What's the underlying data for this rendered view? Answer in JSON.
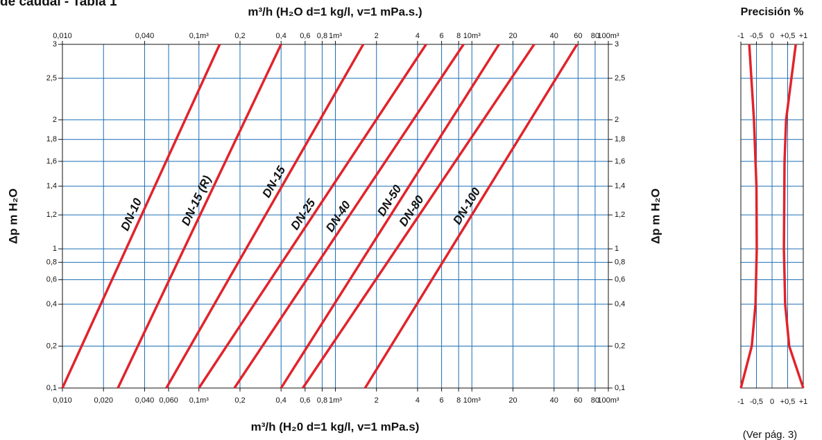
{
  "page_title": "de caudal - Tabla 1",
  "note": "(Ver pág. 3)",
  "chart_data": [
    {
      "type": "line",
      "x_label_top": "m³/h (H₂O  d=1  kg/l,  v=1 mPa.s.)",
      "x_label": "m³/h (H₂0  d=1  kg/l,  v=1 mPa.s)",
      "y_label": "Δp m H₂O",
      "xscale": "log",
      "xlim": [
        0.01,
        100
      ],
      "ylim": [
        0.1,
        3
      ],
      "grid": true,
      "xticks": [
        {
          "value": 0.01,
          "label": "0,010"
        },
        {
          "value": 0.02,
          "label": "0,020"
        },
        {
          "value": 0.04,
          "label": "0,040"
        },
        {
          "value": 0.06,
          "label": "0,060"
        },
        {
          "value": 0.1,
          "label": "0,1m³"
        },
        {
          "value": 0.2,
          "label": "0,2"
        },
        {
          "value": 0.4,
          "label": "0,4"
        },
        {
          "value": 0.6,
          "label": "0,6"
        },
        {
          "value": 0.8,
          "label": "0,8"
        },
        {
          "value": 1,
          "label": "1m³"
        },
        2,
        4,
        6,
        8,
        {
          "value": 10,
          "label": "10m³"
        },
        20,
        40,
        60,
        80,
        {
          "value": 100,
          "label": "100m³"
        }
      ],
      "x2ticks": [
        {
          "value": 0.01,
          "label": "0,010"
        },
        {
          "value": 0.04,
          "label": "0,040"
        },
        {
          "value": 0.1,
          "label": "0,1m³"
        },
        {
          "value": 0.2,
          "label": "0,2"
        },
        {
          "value": 0.4,
          "label": "0,4"
        },
        {
          "value": 0.6,
          "label": "0,6"
        },
        {
          "value": 0.8,
          "label": "0,8"
        },
        {
          "value": 1,
          "label": "1m³"
        },
        2,
        4,
        6,
        8,
        {
          "value": 10,
          "label": "10m³"
        },
        20,
        40,
        60,
        80,
        {
          "value": 100,
          "label": "100m³"
        }
      ],
      "yticks": [
        {
          "value": 0.1,
          "label": "0,1"
        },
        {
          "value": 0.2,
          "label": "0,2"
        },
        {
          "value": 0.4,
          "label": "0,4"
        },
        {
          "value": 0.6,
          "label": "0,6"
        },
        {
          "value": 0.8,
          "label": "0,8"
        },
        1,
        {
          "value": 1.2,
          "label": "1,2"
        },
        {
          "value": 1.4,
          "label": "1,4"
        },
        {
          "value": 1.6,
          "label": "1,6"
        },
        {
          "value": 1.8,
          "label": "1,8"
        },
        2,
        {
          "value": 2.5,
          "label": "2,5"
        },
        3
      ],
      "series": [
        {
          "name": "DN-10",
          "color": "#e1232b",
          "x": [
            0.01,
            0.142
          ],
          "values": [
            0.1,
            3
          ]
        },
        {
          "name": "DN-15 (R)",
          "color": "#e1232b",
          "x": [
            0.0255,
            0.4
          ],
          "values": [
            0.1,
            3
          ]
        },
        {
          "name": "DN-15",
          "color": "#e1232b",
          "x": [
            0.0577,
            1.6
          ],
          "values": [
            0.1,
            3
          ]
        },
        {
          "name": "DN-25",
          "color": "#e1232b",
          "x": [
            0.1,
            4.62
          ],
          "values": [
            0.1,
            3
          ]
        },
        {
          "name": "DN-40",
          "color": "#e1232b",
          "x": [
            0.182,
            8.69
          ],
          "values": [
            0.1,
            3
          ]
        },
        {
          "name": "DN-50",
          "color": "#e1232b",
          "x": [
            0.4,
            15.8
          ],
          "values": [
            0.1,
            3
          ]
        },
        {
          "name": "DN-80",
          "color": "#e1232b",
          "x": [
            0.577,
            28.6
          ],
          "values": [
            0.1,
            3
          ]
        },
        {
          "name": "DN-100",
          "color": "#e1232b",
          "x": [
            1.65,
            59
          ],
          "values": [
            0.1,
            3
          ]
        }
      ]
    },
    {
      "type": "line",
      "title": "Precisión %",
      "xlim": [
        -1,
        1
      ],
      "ylim": [
        0.1,
        3
      ],
      "grid": true,
      "xticks": [
        {
          "value": -1,
          "label": "-1"
        },
        {
          "value": -0.5,
          "label": "-0,5"
        },
        0,
        {
          "value": 0.5,
          "label": "+0,5"
        },
        {
          "value": 1,
          "label": "+1"
        }
      ],
      "yticks": [
        0.1,
        0.2,
        0.4,
        0.6,
        0.8,
        1,
        1.2,
        1.4,
        1.6,
        1.8,
        2,
        2.5,
        3
      ],
      "series": [
        {
          "color": "#e1232b",
          "x": [
            -1,
            -0.65,
            -0.53,
            -0.49,
            -0.5,
            -0.58,
            -0.73
          ],
          "values": [
            0.1,
            0.2,
            0.4,
            1,
            1.4,
            2,
            3
          ]
        },
        {
          "color": "#e1232b",
          "x": [
            1,
            0.55,
            0.42,
            0.38,
            0.4,
            0.45,
            0.76
          ],
          "values": [
            0.1,
            0.2,
            0.4,
            1,
            1.6,
            2,
            3
          ]
        }
      ]
    }
  ]
}
